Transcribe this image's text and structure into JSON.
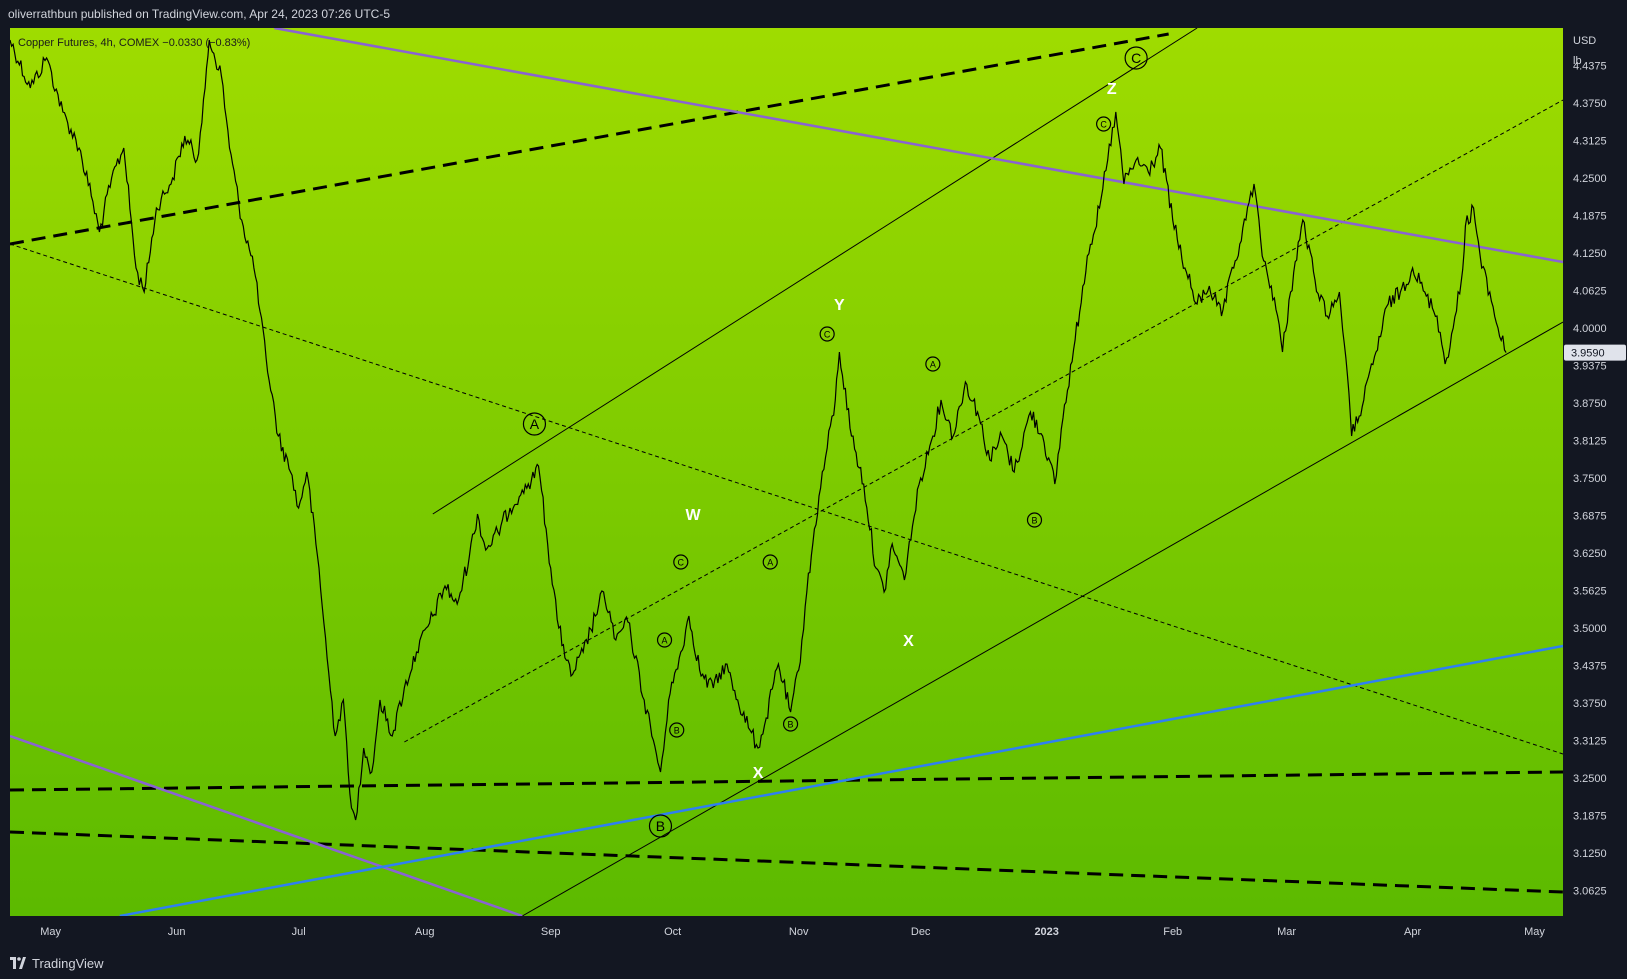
{
  "header": {
    "publish_line": "oliverrathbun published on TradingView.com, Apr 24, 2023 07:26 UTC-5"
  },
  "legend": {
    "symbol_line": "Copper Futures, 4h, COMEX  −0.0330 (−0.83%)"
  },
  "footer": {
    "brand": "TradingView"
  },
  "colors": {
    "background_top": "#9fdc00",
    "background_bottom": "#5cba00",
    "price_line": "#000000",
    "purple_trend": "#8a63d2",
    "blue_trend": "#2f7ff2",
    "axis_bg": "#131722",
    "axis_text": "#d1d4dc"
  },
  "chart_data": {
    "type": "line",
    "title": "Copper Futures, 4h, COMEX",
    "currency": "USD",
    "unit": "lb",
    "last_price": "3.9590",
    "change": "−0.0330 (−0.83%)",
    "ylim": [
      3.02,
      4.5
    ],
    "xlim": [
      "2022-04-21",
      "2023-05-08"
    ],
    "y_ticks": [
      "4.4375",
      "4.3750",
      "4.3125",
      "4.2500",
      "4.1875",
      "4.1250",
      "4.0625",
      "4.0000",
      "3.9375",
      "3.8750",
      "3.8125",
      "3.7500",
      "3.6875",
      "3.6250",
      "3.5625",
      "3.5000",
      "3.4375",
      "3.3750",
      "3.3125",
      "3.2500",
      "3.1875",
      "3.1250",
      "3.0625"
    ],
    "x_ticks": [
      {
        "label": "May",
        "date": "2022-05-01"
      },
      {
        "label": "Jun",
        "date": "2022-06-01"
      },
      {
        "label": "Jul",
        "date": "2022-07-01"
      },
      {
        "label": "Aug",
        "date": "2022-08-01"
      },
      {
        "label": "Sep",
        "date": "2022-09-01"
      },
      {
        "label": "Oct",
        "date": "2022-10-01"
      },
      {
        "label": "Nov",
        "date": "2022-11-01"
      },
      {
        "label": "Dec",
        "date": "2022-12-01"
      },
      {
        "label": "2023",
        "date": "2023-01-01"
      },
      {
        "label": "Feb",
        "date": "2023-02-01"
      },
      {
        "label": "Mar",
        "date": "2023-03-01"
      },
      {
        "label": "Apr",
        "date": "2023-04-01"
      },
      {
        "label": "May",
        "date": "2023-05-01"
      }
    ],
    "series": [
      {
        "points": [
          [
            "2022-04-21",
            4.48
          ],
          [
            "2022-04-26",
            4.4
          ],
          [
            "2022-04-30",
            4.45
          ],
          [
            "2022-05-04",
            4.36
          ],
          [
            "2022-05-08",
            4.3
          ],
          [
            "2022-05-11",
            4.22
          ],
          [
            "2022-05-13",
            4.16
          ],
          [
            "2022-05-16",
            4.25
          ],
          [
            "2022-05-19",
            4.3
          ],
          [
            "2022-05-22",
            4.1
          ],
          [
            "2022-05-24",
            4.06
          ],
          [
            "2022-05-27",
            4.2
          ],
          [
            "2022-05-31",
            4.25
          ],
          [
            "2022-06-03",
            4.32
          ],
          [
            "2022-06-06",
            4.28
          ],
          [
            "2022-06-08",
            4.4
          ],
          [
            "2022-06-09",
            4.48
          ],
          [
            "2022-06-12",
            4.42
          ],
          [
            "2022-06-14",
            4.3
          ],
          [
            "2022-06-17",
            4.18
          ],
          [
            "2022-06-20",
            4.1
          ],
          [
            "2022-06-23",
            3.95
          ],
          [
            "2022-06-26",
            3.82
          ],
          [
            "2022-06-29",
            3.76
          ],
          [
            "2022-07-01",
            3.7
          ],
          [
            "2022-07-03",
            3.76
          ],
          [
            "2022-07-06",
            3.6
          ],
          [
            "2022-07-08",
            3.45
          ],
          [
            "2022-07-10",
            3.32
          ],
          [
            "2022-07-12",
            3.38
          ],
          [
            "2022-07-14",
            3.2
          ],
          [
            "2022-07-15",
            3.18
          ],
          [
            "2022-07-17",
            3.3
          ],
          [
            "2022-07-19",
            3.26
          ],
          [
            "2022-07-21",
            3.38
          ],
          [
            "2022-07-24",
            3.32
          ],
          [
            "2022-07-27",
            3.4
          ],
          [
            "2022-07-30",
            3.46
          ],
          [
            "2022-08-03",
            3.52
          ],
          [
            "2022-08-06",
            3.57
          ],
          [
            "2022-08-09",
            3.54
          ],
          [
            "2022-08-12",
            3.62
          ],
          [
            "2022-08-14",
            3.69
          ],
          [
            "2022-08-16",
            3.63
          ],
          [
            "2022-08-19",
            3.66
          ],
          [
            "2022-08-22",
            3.7
          ],
          [
            "2022-08-25",
            3.73
          ],
          [
            "2022-08-28",
            3.75
          ],
          [
            "2022-08-29",
            3.77
          ],
          [
            "2022-09-01",
            3.6
          ],
          [
            "2022-09-03",
            3.5
          ],
          [
            "2022-09-06",
            3.42
          ],
          [
            "2022-09-09",
            3.46
          ],
          [
            "2022-09-12",
            3.52
          ],
          [
            "2022-09-14",
            3.56
          ],
          [
            "2022-09-17",
            3.48
          ],
          [
            "2022-09-20",
            3.51
          ],
          [
            "2022-09-24",
            3.38
          ],
          [
            "2022-09-27",
            3.29
          ],
          [
            "2022-09-28",
            3.26
          ],
          [
            "2022-09-30",
            3.38
          ],
          [
            "2022-10-03",
            3.46
          ],
          [
            "2022-10-05",
            3.52
          ],
          [
            "2022-10-08",
            3.42
          ],
          [
            "2022-10-11",
            3.4
          ],
          [
            "2022-10-14",
            3.44
          ],
          [
            "2022-10-17",
            3.38
          ],
          [
            "2022-10-20",
            3.33
          ],
          [
            "2022-10-22",
            3.3
          ],
          [
            "2022-10-24",
            3.35
          ],
          [
            "2022-10-27",
            3.44
          ],
          [
            "2022-10-30",
            3.36
          ],
          [
            "2022-11-01",
            3.43
          ],
          [
            "2022-11-03",
            3.56
          ],
          [
            "2022-11-06",
            3.72
          ],
          [
            "2022-11-08",
            3.8
          ],
          [
            "2022-11-10",
            3.88
          ],
          [
            "2022-11-11",
            3.96
          ],
          [
            "2022-11-14",
            3.82
          ],
          [
            "2022-11-17",
            3.74
          ],
          [
            "2022-11-20",
            3.6
          ],
          [
            "2022-11-22",
            3.56
          ],
          [
            "2022-11-24",
            3.64
          ],
          [
            "2022-11-27",
            3.58
          ],
          [
            "2022-11-29",
            3.67
          ],
          [
            "2022-12-01",
            3.75
          ],
          [
            "2022-12-04",
            3.82
          ],
          [
            "2022-12-06",
            3.88
          ],
          [
            "2022-12-09",
            3.82
          ],
          [
            "2022-12-12",
            3.91
          ],
          [
            "2022-12-15",
            3.86
          ],
          [
            "2022-12-18",
            3.78
          ],
          [
            "2022-12-21",
            3.82
          ],
          [
            "2022-12-24",
            3.76
          ],
          [
            "2022-12-28",
            3.86
          ],
          [
            "2022-12-31",
            3.82
          ],
          [
            "2023-01-03",
            3.74
          ],
          [
            "2023-01-05",
            3.85
          ],
          [
            "2023-01-08",
            3.98
          ],
          [
            "2023-01-11",
            4.12
          ],
          [
            "2023-01-14",
            4.2
          ],
          [
            "2023-01-16",
            4.28
          ],
          [
            "2023-01-18",
            4.36
          ],
          [
            "2023-01-20",
            4.24
          ],
          [
            "2023-01-23",
            4.28
          ],
          [
            "2023-01-26",
            4.26
          ],
          [
            "2023-01-29",
            4.3
          ],
          [
            "2023-02-01",
            4.18
          ],
          [
            "2023-02-04",
            4.1
          ],
          [
            "2023-02-07",
            4.04
          ],
          [
            "2023-02-10",
            4.07
          ],
          [
            "2023-02-13",
            4.02
          ],
          [
            "2023-02-16",
            4.1
          ],
          [
            "2023-02-19",
            4.18
          ],
          [
            "2023-02-21",
            4.24
          ],
          [
            "2023-02-23",
            4.12
          ],
          [
            "2023-02-26",
            4.05
          ],
          [
            "2023-02-28",
            3.96
          ],
          [
            "2023-03-02",
            4.06
          ],
          [
            "2023-03-05",
            4.18
          ],
          [
            "2023-03-08",
            4.08
          ],
          [
            "2023-03-11",
            4.02
          ],
          [
            "2023-03-14",
            4.06
          ],
          [
            "2023-03-16",
            3.92
          ],
          [
            "2023-03-17",
            3.82
          ],
          [
            "2023-03-20",
            3.88
          ],
          [
            "2023-03-23",
            3.96
          ],
          [
            "2023-03-26",
            4.04
          ],
          [
            "2023-03-29",
            4.06
          ],
          [
            "2023-04-01",
            4.1
          ],
          [
            "2023-04-04",
            4.06
          ],
          [
            "2023-04-07",
            4.02
          ],
          [
            "2023-04-09",
            3.94
          ],
          [
            "2023-04-11",
            4.0
          ],
          [
            "2023-04-13",
            4.08
          ],
          [
            "2023-04-14",
            4.17
          ],
          [
            "2023-04-16",
            4.2
          ],
          [
            "2023-04-18",
            4.1
          ],
          [
            "2023-04-20",
            4.06
          ],
          [
            "2023-04-22",
            4.0
          ],
          [
            "2023-04-24",
            3.959
          ]
        ]
      }
    ],
    "trendlines": [
      {
        "style": "dashed-bold",
        "color": "#000000",
        "from": [
          "2022-04-21",
          4.14
        ],
        "to": [
          "2023-01-31",
          4.49
        ]
      },
      {
        "style": "dashed-bold",
        "color": "#000000",
        "from": [
          "2022-04-21",
          3.23
        ],
        "to": [
          "2023-05-08",
          3.26
        ]
      },
      {
        "style": "dashed-bold",
        "color": "#000000",
        "from": [
          "2022-04-21",
          3.16
        ],
        "to": [
          "2023-05-08",
          3.06
        ]
      },
      {
        "style": "solid-thin",
        "color": "#000000",
        "from": [
          "2022-08-03",
          3.69
        ],
        "to": [
          "2023-02-07",
          4.5
        ]
      },
      {
        "style": "solid-thin",
        "color": "#000000",
        "from": [
          "2022-08-25",
          3.02
        ],
        "to": [
          "2023-05-08",
          4.01
        ]
      },
      {
        "style": "dotted",
        "color": "#000000",
        "from": [
          "2022-04-21",
          4.14
        ],
        "to": [
          "2023-05-08",
          3.29
        ]
      },
      {
        "style": "dotted",
        "color": "#000000",
        "from": [
          "2022-07-27",
          3.31
        ],
        "to": [
          "2023-05-08",
          4.38
        ]
      },
      {
        "style": "solid",
        "color": "#8a63d2",
        "from": [
          "2022-06-25",
          4.5
        ],
        "to": [
          "2023-05-08",
          4.11
        ]
      },
      {
        "style": "solid",
        "color": "#8a63d2",
        "from": [
          "2022-04-21",
          3.32
        ],
        "to": [
          "2022-08-25",
          3.02
        ]
      },
      {
        "style": "solid",
        "color": "#2f7ff2",
        "from": [
          "2022-05-18",
          3.02
        ],
        "to": [
          "2023-05-08",
          3.47
        ]
      }
    ],
    "annotations": [
      {
        "label": "A",
        "circled": true,
        "large": true,
        "date": "2022-08-28",
        "price": 3.84
      },
      {
        "label": "B",
        "circled": true,
        "large": true,
        "date": "2022-09-28",
        "price": 3.17
      },
      {
        "label": "C",
        "circled": true,
        "large": true,
        "date": "2023-01-23",
        "price": 4.45
      },
      {
        "label": "W",
        "circled": false,
        "date": "2022-10-06",
        "price": 3.69
      },
      {
        "label": "X",
        "circled": false,
        "date": "2022-10-22",
        "price": 3.26
      },
      {
        "label": "Y",
        "circled": false,
        "date": "2022-11-11",
        "price": 4.04
      },
      {
        "label": "X",
        "circled": false,
        "date": "2022-11-28",
        "price": 3.48
      },
      {
        "label": "Z",
        "circled": false,
        "date": "2023-01-17",
        "price": 4.4
      },
      {
        "label": "A",
        "circled": true,
        "large": false,
        "date": "2022-09-29",
        "price": 3.48
      },
      {
        "label": "B",
        "circled": true,
        "large": false,
        "date": "2022-10-02",
        "price": 3.33
      },
      {
        "label": "C",
        "circled": true,
        "large": false,
        "date": "2022-10-03",
        "price": 3.61
      },
      {
        "label": "A",
        "circled": true,
        "large": false,
        "date": "2022-10-25",
        "price": 3.61
      },
      {
        "label": "B",
        "circled": true,
        "large": false,
        "date": "2022-10-30",
        "price": 3.34
      },
      {
        "label": "C",
        "circled": true,
        "large": false,
        "date": "2022-11-08",
        "price": 3.99
      },
      {
        "label": "A",
        "circled": true,
        "large": false,
        "date": "2022-12-04",
        "price": 3.94
      },
      {
        "label": "B",
        "circled": true,
        "large": false,
        "date": "2022-12-29",
        "price": 3.68
      },
      {
        "label": "C",
        "circled": true,
        "large": false,
        "date": "2023-01-15",
        "price": 4.34
      }
    ]
  }
}
